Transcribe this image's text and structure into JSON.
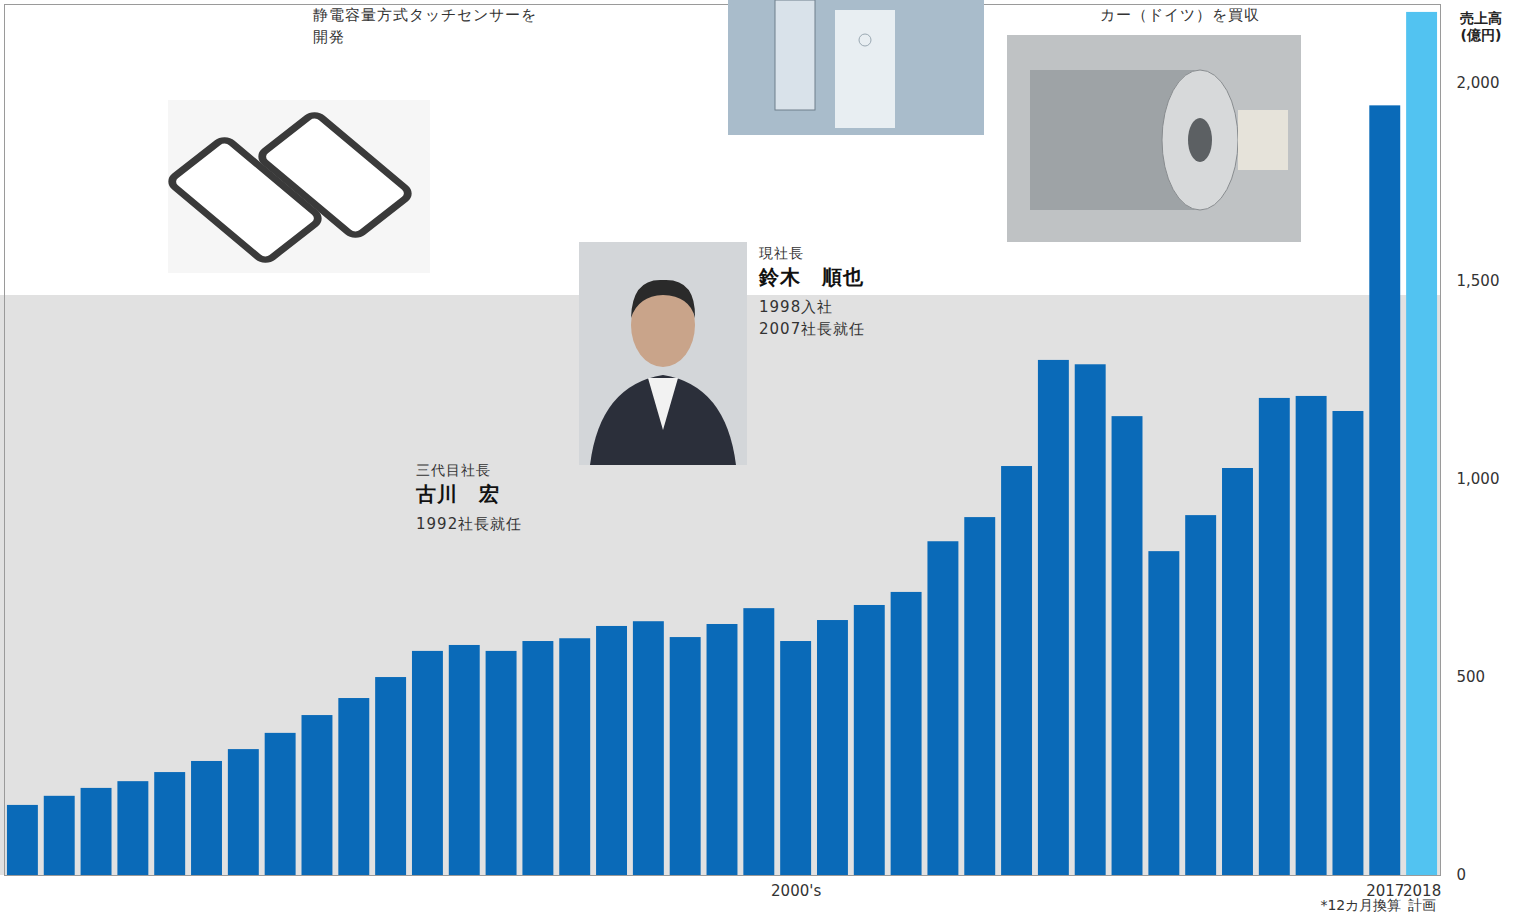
{
  "chart_data": {
    "type": "bar",
    "y_label": "売上高\n(億円)",
    "categories": [
      null,
      null,
      null,
      null,
      null,
      null,
      null,
      null,
      null,
      null,
      null,
      null,
      null,
      null,
      null,
      null,
      null,
      null,
      null,
      null,
      null,
      "2000's",
      null,
      null,
      null,
      null,
      null,
      null,
      null,
      null,
      null,
      null,
      null,
      null,
      null,
      null,
      null,
      "2017",
      "2018"
    ],
    "x_notes": [
      null,
      null,
      null,
      null,
      null,
      null,
      null,
      null,
      null,
      null,
      null,
      null,
      null,
      null,
      null,
      null,
      null,
      null,
      null,
      null,
      null,
      null,
      null,
      null,
      null,
      null,
      null,
      null,
      null,
      null,
      null,
      null,
      null,
      null,
      null,
      null,
      null,
      "*12カ月換算",
      "計画"
    ],
    "values": [
      177,
      200,
      220,
      237,
      260,
      288,
      318,
      359,
      404,
      447,
      500,
      566,
      581,
      566,
      591,
      598,
      629,
      641,
      601,
      634,
      674,
      591,
      644,
      682,
      715,
      843,
      904,
      1033,
      1301,
      1290,
      1159,
      818,
      909,
      1028,
      1205,
      1210,
      1172,
      1944,
      2180
    ],
    "colors": [
      "#0a6ab8",
      "#0a6ab8",
      "#0a6ab8",
      "#0a6ab8",
      "#0a6ab8",
      "#0a6ab8",
      "#0a6ab8",
      "#0a6ab8",
      "#0a6ab8",
      "#0a6ab8",
      "#0a6ab8",
      "#0a6ab8",
      "#0a6ab8",
      "#0a6ab8",
      "#0a6ab8",
      "#0a6ab8",
      "#0a6ab8",
      "#0a6ab8",
      "#0a6ab8",
      "#0a6ab8",
      "#0a6ab8",
      "#0a6ab8",
      "#0a6ab8",
      "#0a6ab8",
      "#0a6ab8",
      "#0a6ab8",
      "#0a6ab8",
      "#0a6ab8",
      "#0a6ab8",
      "#0a6ab8",
      "#0a6ab8",
      "#0a6ab8",
      "#0a6ab8",
      "#0a6ab8",
      "#0a6ab8",
      "#0a6ab8",
      "#0a6ab8",
      "#0a6ab8",
      "#52c3f1"
    ],
    "ylim": [
      0,
      2200
    ],
    "yticks": [
      0,
      500,
      {
        "value": 1000,
        "label": "1,000"
      },
      {
        "value": 1500,
        "label": "1,500"
      },
      {
        "value": 2000,
        "label": "2,000"
      }
    ],
    "grid": false,
    "annotations": [
      {
        "lines": [
          "静電容量方式タッチセンサーを",
          "開発"
        ]
      },
      {
        "lines": [
          "カー（ドイツ）を買収"
        ]
      },
      {
        "role": "三代目社長",
        "name": "古川　宏",
        "lines": [
          "1992社長就任"
        ]
      },
      {
        "role": "現社長",
        "name": "鈴木　順也",
        "lines": [
          "1998入社",
          "2007社長就任"
        ]
      }
    ]
  }
}
